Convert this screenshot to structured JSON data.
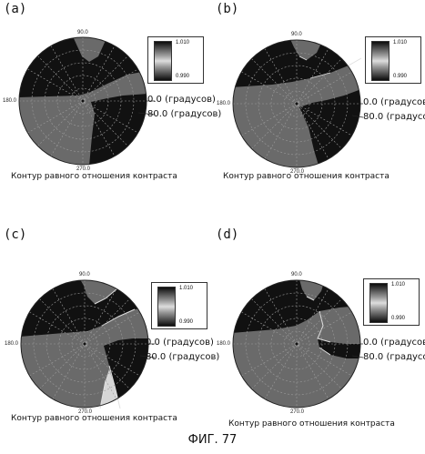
{
  "figure_caption": "ФИГ. 77",
  "colors": {
    "dark": "#111111",
    "mid": "#6a6a6a",
    "light": "#e0e0e0"
  },
  "panels": [
    {
      "tag": "(a)",
      "angle_top": "90.0",
      "angle_left": "180.0",
      "angle_bottom": "270.0",
      "annot_zero": "0.0 (градусов)",
      "annot_eighty": "80.0 (градусов)",
      "legend_max": "1.010",
      "legend_min": "0.990",
      "caption": "Контур равного отношения контраста"
    },
    {
      "tag": "(b)",
      "angle_top": "90.0",
      "angle_left": "180.0",
      "angle_bottom": "270.0",
      "annot_zero": "0.0 (градусов)",
      "annot_eighty": "80.0 (градусов)",
      "legend_max": "1.010",
      "legend_min": "0.990",
      "caption": "Контур равного отношения контраста"
    },
    {
      "tag": "(c)",
      "angle_top": "90.0",
      "angle_left": "180.0",
      "angle_bottom": "270.0",
      "annot_zero": "0.0 (градусов)",
      "annot_eighty": "80.0 (градусов)",
      "legend_max": "1.010",
      "legend_min": "0.990",
      "caption": "Контур равного отношения контраста"
    },
    {
      "tag": "(d)",
      "angle_top": "90.0",
      "angle_left": "180.0",
      "angle_bottom": "270.0",
      "annot_zero": "0.0 (градусов)",
      "annot_eighty": "80.0 (градусов)",
      "legend_max": "1.010",
      "legend_min": "0.990",
      "caption": "Контур равного отношения контраста"
    }
  ]
}
